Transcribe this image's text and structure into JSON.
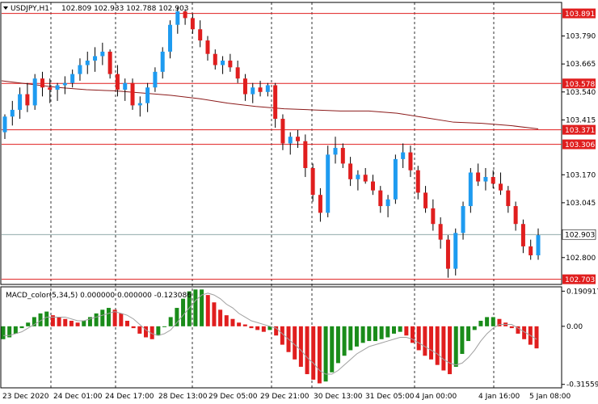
{
  "header": {
    "symbol_timeframe": "USDJPY,H1",
    "ohlc": "102.809 102.933 102.788 102.903",
    "triangle_icon": "dropdown-triangle"
  },
  "colors": {
    "bull": "#1e9bf0",
    "bear": "#e01e1e",
    "level_line": "#e01e1e",
    "ma_line": "#8b1a1a",
    "price_line": "#6b8c8c",
    "macd_up": "#1a8c1a",
    "macd_down": "#e01e1e",
    "signal": "#a0a0a0"
  },
  "chart_data": [
    {
      "type": "candlestick",
      "title": "USDJPY,H1",
      "ylim": [
        102.68,
        103.94
      ],
      "y_ticks": [
        "103.790",
        "103.665",
        "103.540",
        "103.415",
        "103.170",
        "103.045",
        "102.800"
      ],
      "x_ticks": [
        "23 Dec 2020",
        "24 Dec 01:00",
        "24 Dec 17:00",
        "28 Dec 13:00",
        "29 Dec 05:00",
        "29 Dec 21:00",
        "30 Dec 13:00",
        "31 Dec 05:00",
        "4 Jan 00:00",
        "4 Jan 16:00",
        "5 Jan 08:00"
      ],
      "levels": [
        {
          "value": 103.891,
          "label": "103.891"
        },
        {
          "value": 103.578,
          "label": "103.578"
        },
        {
          "value": 103.371,
          "label": "103.371"
        },
        {
          "value": 103.306,
          "label": "103.306"
        },
        {
          "value": 102.703,
          "label": "102.703"
        }
      ],
      "current_price": {
        "value": 102.903,
        "label": "102.903"
      },
      "moving_average": [
        103.59,
        103.575,
        103.56,
        103.55,
        103.545,
        103.535,
        103.525,
        103.51,
        103.49,
        103.475,
        103.465,
        103.46,
        103.455,
        103.455,
        103.445,
        103.425,
        103.405,
        103.4,
        103.39,
        103.375
      ],
      "candles": [
        [
          103.36,
          103.44,
          103.33,
          103.43
        ],
        [
          103.43,
          103.5,
          103.39,
          103.46
        ],
        [
          103.46,
          103.56,
          103.42,
          103.53
        ],
        [
          103.53,
          103.58,
          103.45,
          103.48
        ],
        [
          103.48,
          103.62,
          103.46,
          103.6
        ],
        [
          103.6,
          103.63,
          103.52,
          103.56
        ],
        [
          103.56,
          103.6,
          103.49,
          103.55
        ],
        [
          103.55,
          103.58,
          103.5,
          103.57
        ],
        [
          103.57,
          103.61,
          103.53,
          103.58
        ],
        [
          103.58,
          103.64,
          103.56,
          103.62
        ],
        [
          103.62,
          103.69,
          103.59,
          103.66
        ],
        [
          103.66,
          103.72,
          103.62,
          103.68
        ],
        [
          103.68,
          103.74,
          103.63,
          103.7
        ],
        [
          103.7,
          103.76,
          103.66,
          103.72
        ],
        [
          103.72,
          103.73,
          103.6,
          103.62
        ],
        [
          103.62,
          103.66,
          103.52,
          103.55
        ],
        [
          103.55,
          103.6,
          103.5,
          103.58
        ],
        [
          103.58,
          103.6,
          103.46,
          103.48
        ],
        [
          103.48,
          103.52,
          103.43,
          103.49
        ],
        [
          103.49,
          103.58,
          103.45,
          103.56
        ],
        [
          103.56,
          103.65,
          103.54,
          103.63
        ],
        [
          103.63,
          103.74,
          103.6,
          103.72
        ],
        [
          103.72,
          103.86,
          103.69,
          103.84
        ],
        [
          103.84,
          103.92,
          103.8,
          103.9
        ],
        [
          103.9,
          103.91,
          103.84,
          103.87
        ],
        [
          103.87,
          103.89,
          103.8,
          103.82
        ],
        [
          103.82,
          103.86,
          103.74,
          103.77
        ],
        [
          103.77,
          103.79,
          103.68,
          103.71
        ],
        [
          103.71,
          103.73,
          103.64,
          103.66
        ],
        [
          103.66,
          103.7,
          103.62,
          103.68
        ],
        [
          103.68,
          103.71,
          103.63,
          103.65
        ],
        [
          103.65,
          103.68,
          103.58,
          103.6
        ],
        [
          103.6,
          103.62,
          103.5,
          103.53
        ],
        [
          103.53,
          103.58,
          103.49,
          103.56
        ],
        [
          103.56,
          103.59,
          103.52,
          103.54
        ],
        [
          103.54,
          103.58,
          103.52,
          103.57
        ],
        [
          103.57,
          103.58,
          103.38,
          103.42
        ],
        [
          103.42,
          103.44,
          103.28,
          103.31
        ],
        [
          103.31,
          103.36,
          103.26,
          103.34
        ],
        [
          103.34,
          103.37,
          103.29,
          103.32
        ],
        [
          103.32,
          103.35,
          103.16,
          103.2
        ],
        [
          103.2,
          103.22,
          103.05,
          103.08
        ],
        [
          103.08,
          103.11,
          102.96,
          103.0
        ],
        [
          103.0,
          103.3,
          102.98,
          103.26
        ],
        [
          103.26,
          103.34,
          103.22,
          103.29
        ],
        [
          103.29,
          103.31,
          103.2,
          103.22
        ],
        [
          103.22,
          103.25,
          103.12,
          103.15
        ],
        [
          103.15,
          103.19,
          103.1,
          103.17
        ],
        [
          103.17,
          103.2,
          103.13,
          103.14
        ],
        [
          103.14,
          103.17,
          103.08,
          103.1
        ],
        [
          103.1,
          103.12,
          103.0,
          103.03
        ],
        [
          103.03,
          103.08,
          102.98,
          103.06
        ],
        [
          103.06,
          103.26,
          103.04,
          103.24
        ],
        [
          103.24,
          103.31,
          103.2,
          103.27
        ],
        [
          103.27,
          103.3,
          103.16,
          103.19
        ],
        [
          103.19,
          103.21,
          103.06,
          103.09
        ],
        [
          103.09,
          103.12,
          103.0,
          103.02
        ],
        [
          103.02,
          103.06,
          102.92,
          102.95
        ],
        [
          102.95,
          102.98,
          102.84,
          102.88
        ],
        [
          102.88,
          102.9,
          102.71,
          102.75
        ],
        [
          102.75,
          102.93,
          102.72,
          102.91
        ],
        [
          102.91,
          103.05,
          102.88,
          103.03
        ],
        [
          103.03,
          103.2,
          103.0,
          103.18
        ],
        [
          103.18,
          103.22,
          103.12,
          103.14
        ],
        [
          103.14,
          103.2,
          103.1,
          103.16
        ],
        [
          103.16,
          103.19,
          103.11,
          103.13
        ],
        [
          103.13,
          103.18,
          103.08,
          103.1
        ],
        [
          103.1,
          103.12,
          103.0,
          103.03
        ],
        [
          103.03,
          103.05,
          102.92,
          102.95
        ],
        [
          102.95,
          102.97,
          102.82,
          102.85
        ],
        [
          102.85,
          102.88,
          102.79,
          102.81
        ],
        [
          102.81,
          102.93,
          102.79,
          102.9
        ]
      ]
    },
    {
      "type": "bar",
      "title": "MACD_color(5,34,5) 0.000000 0.000000 -0.123086",
      "y_ticks": [
        "0.190917",
        "0.00",
        "-0.315595"
      ],
      "ylim": [
        -0.33,
        0.21
      ],
      "values": [
        -0.07,
        -0.06,
        -0.04,
        -0.01,
        0.02,
        0.05,
        0.07,
        0.08,
        0.06,
        0.05,
        0.04,
        0.03,
        0.02,
        0.03,
        0.05,
        0.07,
        0.09,
        0.1,
        0.09,
        0.07,
        0.03,
        -0.01,
        -0.04,
        -0.06,
        -0.07,
        -0.05,
        0.0,
        0.05,
        0.1,
        0.15,
        0.19,
        0.2,
        0.2,
        0.17,
        0.13,
        0.09,
        0.06,
        0.04,
        0.02,
        0.01,
        -0.01,
        -0.02,
        -0.03,
        -0.02,
        -0.05,
        -0.1,
        -0.14,
        -0.18,
        -0.22,
        -0.26,
        -0.29,
        -0.31,
        -0.3,
        -0.25,
        -0.2,
        -0.16,
        -0.13,
        -0.11,
        -0.09,
        -0.08,
        -0.08,
        -0.07,
        -0.06,
        -0.04,
        -0.03,
        -0.05,
        -0.09,
        -0.13,
        -0.16,
        -0.18,
        -0.21,
        -0.24,
        -0.26,
        -0.22,
        -0.15,
        -0.08,
        -0.02,
        0.03,
        0.05,
        0.05,
        0.04,
        0.02,
        -0.01,
        -0.04,
        -0.07,
        -0.1,
        -0.12
      ],
      "signal": [
        -0.05,
        -0.05,
        -0.04,
        -0.03,
        -0.01,
        0.01,
        0.03,
        0.05,
        0.05,
        0.05,
        0.05,
        0.04,
        0.03,
        0.03,
        0.04,
        0.05,
        0.06,
        0.07,
        0.08,
        0.07,
        0.06,
        0.04,
        0.01,
        -0.02,
        -0.04,
        -0.05,
        -0.04,
        -0.02,
        0.02,
        0.06,
        0.1,
        0.14,
        0.17,
        0.18,
        0.17,
        0.15,
        0.12,
        0.1,
        0.07,
        0.05,
        0.03,
        0.02,
        0.01,
        0.0,
        -0.01,
        -0.04,
        -0.07,
        -0.1,
        -0.13,
        -0.17,
        -0.2,
        -0.24,
        -0.26,
        -0.26,
        -0.24,
        -0.21,
        -0.18,
        -0.15,
        -0.13,
        -0.11,
        -0.1,
        -0.09,
        -0.08,
        -0.07,
        -0.06,
        -0.06,
        -0.07,
        -0.09,
        -0.11,
        -0.13,
        -0.15,
        -0.18,
        -0.2,
        -0.21,
        -0.2,
        -0.17,
        -0.13,
        -0.08,
        -0.04,
        -0.01,
        0.01,
        0.01,
        0.01,
        -0.01,
        -0.03,
        -0.05,
        -0.07
      ]
    }
  ]
}
